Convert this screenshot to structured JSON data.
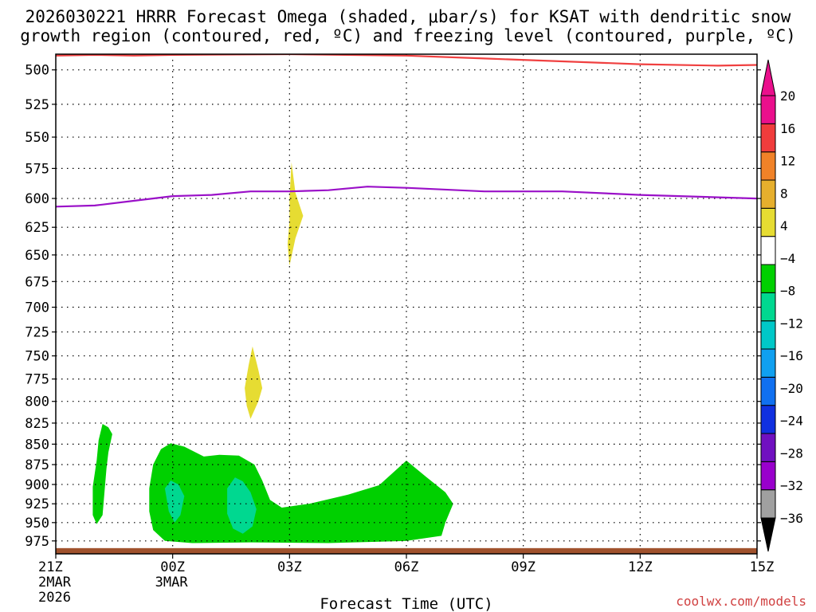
{
  "chart_data": {
    "type": "time-height contour",
    "title_line1": "2026030221 HRRR Forecast Omega (shaded, μbar/s) for KSAT with dendritic snow",
    "title_line2": "growth region (contoured, red, ºC) and freezing level (contoured, purple, ºC)",
    "xlabel": "Forecast Time (UTC)",
    "credit": "coolwx.com/models",
    "x_ticks": [
      {
        "hour": 0,
        "label": "21Z",
        "date": "2MAR",
        "year": "2026"
      },
      {
        "hour": 3,
        "label": "00Z",
        "date": "3MAR",
        "year": ""
      },
      {
        "hour": 6,
        "label": "03Z",
        "date": "",
        "year": ""
      },
      {
        "hour": 9,
        "label": "06Z",
        "date": "",
        "year": ""
      },
      {
        "hour": 12,
        "label": "09Z",
        "date": "",
        "year": ""
      },
      {
        "hour": 15,
        "label": "12Z",
        "date": "",
        "year": ""
      },
      {
        "hour": 18,
        "label": "15Z",
        "date": "",
        "year": ""
      }
    ],
    "xlim": [
      0,
      18
    ],
    "y_ticks": [
      500,
      525,
      550,
      575,
      600,
      625,
      650,
      675,
      700,
      725,
      750,
      775,
      800,
      825,
      850,
      875,
      900,
      925,
      950,
      975
    ],
    "ylim": [
      489,
      993
    ],
    "yscale": "log",
    "colorbar": {
      "levels": [
        -36,
        -32,
        -28,
        -24,
        -20,
        -16,
        -12,
        -8,
        -4,
        4,
        8,
        12,
        16,
        20
      ],
      "labels": [
        "20",
        "16",
        "12",
        "8",
        "4",
        "−4",
        "−8",
        "−12",
        "−16",
        "−20",
        "−24",
        "−28",
        "−32",
        "−36"
      ],
      "colors": [
        "#e8e8e8",
        "#a0a0a0",
        "#9900cc",
        "#7010c0",
        "#1030e0",
        "#1070f0",
        "#10a0f0",
        "#00c8c8",
        "#00d890",
        "#00d000",
        "#ffffff",
        "#e6dc32",
        "#e6af2d",
        "#f08228",
        "#f03c3c",
        "#ea0f8c",
        "#000000"
      ]
    },
    "dgz_line": {
      "name": "dendritic snow growth region",
      "color": "#f04040",
      "points": [
        [
          0,
          490
        ],
        [
          1,
          489.5
        ],
        [
          2,
          490
        ],
        [
          3,
          489.5
        ],
        [
          6,
          489
        ],
        [
          9,
          490
        ],
        [
          11,
          492
        ],
        [
          13,
          494
        ],
        [
          15,
          496
        ],
        [
          17,
          497
        ],
        [
          18,
          496.5
        ]
      ]
    },
    "freezing_line": {
      "name": "freezing level",
      "color": "#9a10c8",
      "points": [
        [
          0,
          607
        ],
        [
          1,
          606
        ],
        [
          2,
          602
        ],
        [
          3,
          598
        ],
        [
          4,
          597
        ],
        [
          5,
          594
        ],
        [
          6,
          594
        ],
        [
          7,
          593
        ],
        [
          8,
          590
        ],
        [
          9,
          591
        ],
        [
          11,
          594
        ],
        [
          13,
          594
        ],
        [
          15,
          597
        ],
        [
          17,
          599
        ],
        [
          18,
          600
        ]
      ]
    },
    "omega_regions": [
      {
        "name": "omega-rising-region-1",
        "value_range": [
          -8,
          -4
        ],
        "color": "#00d000",
        "points": [
          [
            0.95,
            903
          ],
          [
            1.05,
            870
          ],
          [
            1.1,
            845
          ],
          [
            1.2,
            826
          ],
          [
            1.35,
            830
          ],
          [
            1.45,
            838
          ],
          [
            1.35,
            860
          ],
          [
            1.3,
            880
          ],
          [
            1.25,
            910
          ],
          [
            1.2,
            940
          ],
          [
            1.05,
            952
          ],
          [
            0.95,
            940
          ]
        ]
      },
      {
        "name": "omega-rising-region-2",
        "value_range": [
          -8,
          -4
        ],
        "color": "#00d000",
        "points": [
          [
            2.4,
            905
          ],
          [
            2.5,
            875
          ],
          [
            2.7,
            856
          ],
          [
            2.95,
            849
          ],
          [
            3.3,
            853
          ],
          [
            3.8,
            865
          ],
          [
            4.2,
            863
          ],
          [
            4.7,
            864
          ],
          [
            5.1,
            875
          ],
          [
            5.3,
            895
          ],
          [
            5.5,
            920
          ],
          [
            5.8,
            930
          ],
          [
            6.5,
            925
          ],
          [
            7.5,
            913
          ],
          [
            8.3,
            901
          ],
          [
            9.0,
            870
          ],
          [
            9.5,
            890
          ],
          [
            10.0,
            910
          ],
          [
            10.2,
            925
          ],
          [
            10.0,
            950
          ],
          [
            9.9,
            968
          ],
          [
            9.0,
            975
          ],
          [
            7.0,
            978
          ],
          [
            5.0,
            977
          ],
          [
            3.5,
            978
          ],
          [
            2.8,
            975
          ],
          [
            2.5,
            960
          ],
          [
            2.4,
            935
          ]
        ]
      },
      {
        "name": "omega-rising-region-3",
        "value_range": [
          -12,
          -8
        ],
        "color": "#00d890",
        "points": [
          [
            2.8,
            905
          ],
          [
            2.95,
            895
          ],
          [
            3.15,
            900
          ],
          [
            3.3,
            915
          ],
          [
            3.2,
            940
          ],
          [
            3.05,
            950
          ],
          [
            2.9,
            935
          ]
        ]
      },
      {
        "name": "omega-rising-region-4",
        "value_range": [
          -12,
          -8
        ],
        "color": "#00d890",
        "points": [
          [
            4.4,
            905
          ],
          [
            4.6,
            891
          ],
          [
            4.8,
            896
          ],
          [
            5.0,
            910
          ],
          [
            5.15,
            932
          ],
          [
            5.05,
            955
          ],
          [
            4.8,
            965
          ],
          [
            4.55,
            958
          ],
          [
            4.4,
            938
          ]
        ]
      },
      {
        "name": "omega-sinking-region-1",
        "value_range": [
          4,
          8
        ],
        "color": "#e6dc32",
        "points": [
          [
            6.0,
            620
          ],
          [
            6.0,
            600
          ],
          [
            6.05,
            570
          ],
          [
            6.15,
            595
          ],
          [
            6.35,
            615
          ],
          [
            6.15,
            635
          ],
          [
            6.0,
            660
          ],
          [
            5.95,
            640
          ]
        ]
      },
      {
        "name": "omega-sinking-region-2",
        "value_range": [
          4,
          8
        ],
        "color": "#e6dc32",
        "points": [
          [
            4.85,
            785
          ],
          [
            4.95,
            760
          ],
          [
            5.05,
            740
          ],
          [
            5.2,
            765
          ],
          [
            5.3,
            785
          ],
          [
            5.2,
            800
          ],
          [
            5.0,
            820
          ],
          [
            4.9,
            805
          ]
        ]
      }
    ],
    "ground": {
      "name": "surface-terrain",
      "color": "#a0522d",
      "pressure_top": 985
    }
  }
}
